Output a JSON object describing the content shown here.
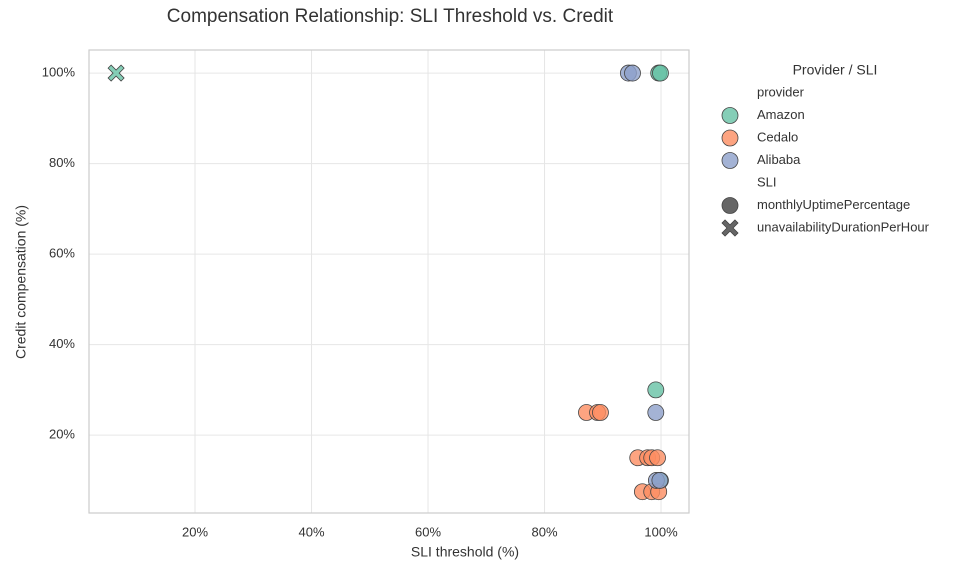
{
  "chart_data": {
    "type": "scatter",
    "title": "Compensation Relationship: SLI Threshold vs. Credit",
    "x_label": "SLI threshold (%)",
    "y_label": "Credit compensation (%)",
    "xlim": [
      1.8,
      104.8
    ],
    "ylim": [
      2.8,
      105.1
    ],
    "xticks": [
      {
        "value": 20,
        "label": "20%"
      },
      {
        "value": 40,
        "label": "40%"
      },
      {
        "value": 60,
        "label": "60%"
      },
      {
        "value": 80,
        "label": "80%"
      },
      {
        "value": 100,
        "label": "100%"
      }
    ],
    "yticks": [
      {
        "value": 20,
        "label": "20%"
      },
      {
        "value": 40,
        "label": "40%"
      },
      {
        "value": 60,
        "label": "60%"
      },
      {
        "value": 80,
        "label": "80%"
      },
      {
        "value": 100,
        "label": "100%"
      }
    ],
    "grid": true,
    "legend": {
      "title": "Provider / SLI",
      "color_title": "provider",
      "marker_title": "SLI",
      "markers": [
        {
          "label": "monthlyUptimePercentage",
          "shape": "circle"
        },
        {
          "label": "unavailabilityDurationPerHour",
          "shape": "x"
        }
      ]
    },
    "series": [
      {
        "name": "Amazon",
        "color": "#66c2a5",
        "x": [
          99.6,
          99.9,
          99.1,
          99.9,
          6.45
        ],
        "values": [
          100,
          100,
          30,
          10,
          100
        ],
        "marker": [
          "circle",
          "circle",
          "circle",
          "circle",
          "x"
        ]
      },
      {
        "name": "Cedalo",
        "color": "#fc8d62",
        "x": [
          87.2,
          89.1,
          89.6,
          96.0,
          97.7,
          98.4,
          99.4,
          96.8,
          98.4,
          99.6
        ],
        "values": [
          25,
          25,
          25,
          15,
          15,
          15,
          15,
          7.5,
          7.5,
          7.5
        ],
        "marker": [
          "circle",
          "circle",
          "circle",
          "circle",
          "circle",
          "circle",
          "circle",
          "circle",
          "circle",
          "circle"
        ]
      },
      {
        "name": "Alibaba",
        "color": "#8da0cb",
        "x": [
          94.4,
          95.1,
          99.1,
          99.2,
          99.8
        ],
        "values": [
          100,
          100,
          25,
          10,
          10
        ],
        "marker": [
          "circle",
          "circle",
          "circle",
          "circle",
          "circle"
        ]
      }
    ]
  }
}
